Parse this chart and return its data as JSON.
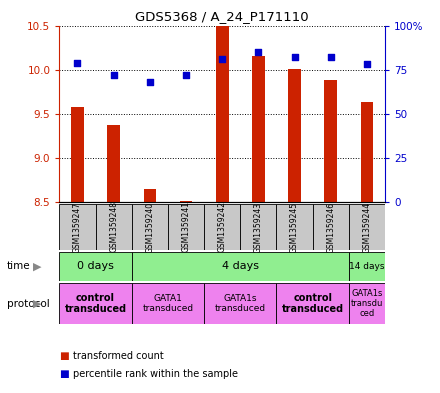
{
  "title": "GDS5368 / A_24_P171110",
  "samples": [
    "GSM1359247",
    "GSM1359248",
    "GSM1359240",
    "GSM1359241",
    "GSM1359242",
    "GSM1359243",
    "GSM1359245",
    "GSM1359246",
    "GSM1359244"
  ],
  "transformed_count": [
    9.58,
    9.37,
    8.65,
    8.52,
    10.5,
    10.15,
    10.01,
    9.88,
    9.63
  ],
  "percentile_rank": [
    79,
    72,
    68,
    72,
    81,
    85,
    82,
    82,
    78
  ],
  "ylim_left": [
    8.5,
    10.5
  ],
  "ylim_right": [
    0,
    100
  ],
  "yticks_left": [
    8.5,
    9.0,
    9.5,
    10.0,
    10.5
  ],
  "yticks_right": [
    0,
    25,
    50,
    75,
    100
  ],
  "ytick_labels_right": [
    "0",
    "25",
    "50",
    "75",
    "100%"
  ],
  "bar_color": "#cc2200",
  "dot_color": "#0000cc",
  "grid_color": "#000000",
  "label_color_left": "#cc2200",
  "label_color_right": "#0000cc",
  "sample_box_color": "#c8c8c8",
  "time_color": "#90ee90",
  "protocol_color": "#ee82ee",
  "legend_bar_color": "#cc2200",
  "legend_dot_color": "#0000cc"
}
